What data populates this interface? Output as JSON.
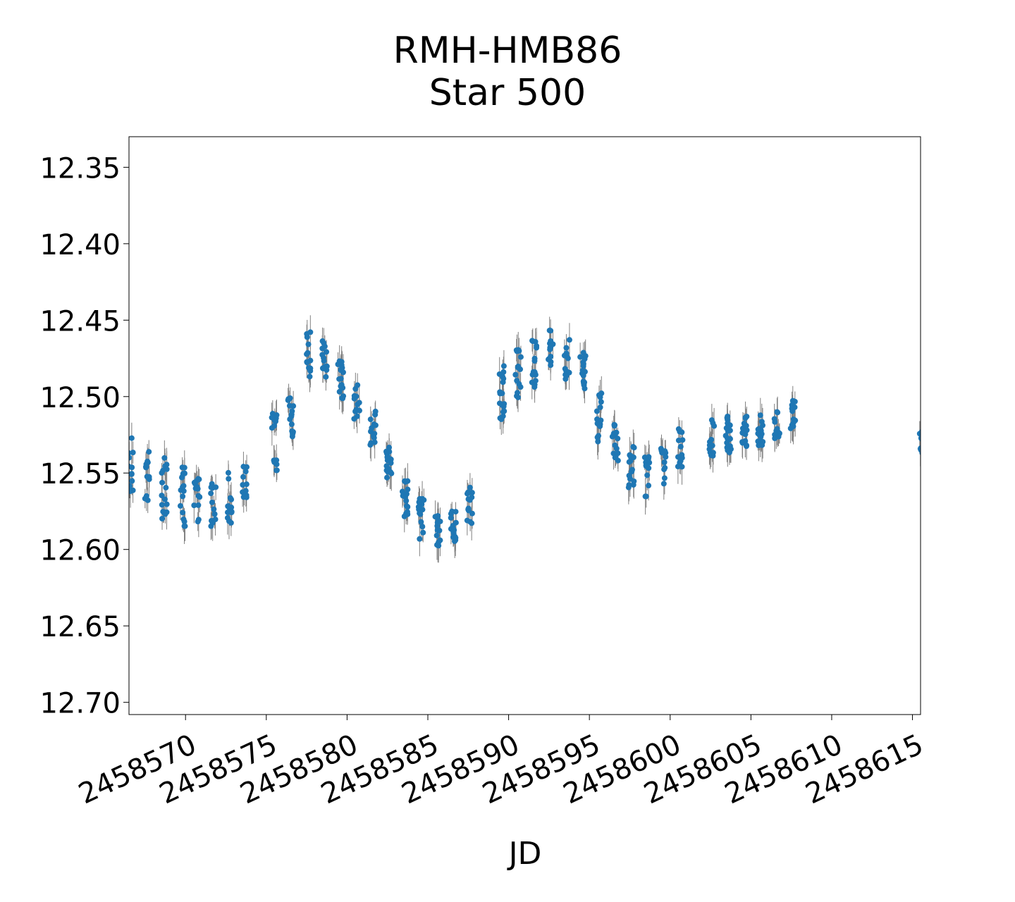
{
  "chart_data": {
    "type": "scatter",
    "title": "RMH-HMB86",
    "subtitle": "Star 500",
    "xlabel": "JD",
    "ylabel": "",
    "xlim": [
      2458566.5,
      2458615.5
    ],
    "ylim": [
      12.708,
      12.33
    ],
    "y_inverted": true,
    "x_ticks": [
      2458570,
      2458575,
      2458580,
      2458585,
      2458590,
      2458595,
      2458600,
      2458605,
      2458610,
      2458615
    ],
    "x_tick_labels": [
      "2458570",
      "2458575",
      "2458580",
      "2458585",
      "2458590",
      "2458595",
      "2458600",
      "2458605",
      "2458610",
      "2458615"
    ],
    "y_ticks": [
      12.35,
      12.4,
      12.45,
      12.5,
      12.55,
      12.6,
      12.65,
      12.7
    ],
    "y_tick_labels": [
      "12.35",
      "12.40",
      "12.45",
      "12.50",
      "12.55",
      "12.60",
      "12.65",
      "12.70"
    ],
    "grid": false,
    "marker_color": "#1f77b4",
    "errorbar_color": "#808080",
    "series": [
      {
        "points": [
          {
            "jd": 2458566.6,
            "center": 12.545,
            "spread": 0.02
          },
          {
            "jd": 2458567.6,
            "center": 12.552,
            "spread": 0.018
          },
          {
            "jd": 2458568.7,
            "center": 12.56,
            "spread": 0.02
          },
          {
            "jd": 2458569.8,
            "center": 12.565,
            "spread": 0.02
          },
          {
            "jd": 2458570.7,
            "center": 12.568,
            "spread": 0.015
          },
          {
            "jd": 2458571.7,
            "center": 12.572,
            "spread": 0.015
          },
          {
            "jd": 2458572.7,
            "center": 12.565,
            "spread": 0.018
          },
          {
            "jd": 2458573.7,
            "center": 12.555,
            "spread": 0.012
          },
          {
            "jd": 2458575.5,
            "center": 12.53,
            "spread": 0.02
          },
          {
            "jd": 2458576.5,
            "center": 12.515,
            "spread": 0.015
          },
          {
            "jd": 2458577.6,
            "center": 12.47,
            "spread": 0.018
          },
          {
            "jd": 2458578.6,
            "center": 12.478,
            "spread": 0.016
          },
          {
            "jd": 2458579.6,
            "center": 12.49,
            "spread": 0.014
          },
          {
            "jd": 2458580.6,
            "center": 12.505,
            "spread": 0.014
          },
          {
            "jd": 2458581.6,
            "center": 12.52,
            "spread": 0.012
          },
          {
            "jd": 2458582.6,
            "center": 12.545,
            "spread": 0.012
          },
          {
            "jd": 2458583.6,
            "center": 12.567,
            "spread": 0.012
          },
          {
            "jd": 2458584.6,
            "center": 12.58,
            "spread": 0.014
          },
          {
            "jd": 2458585.6,
            "center": 12.59,
            "spread": 0.012
          },
          {
            "jd": 2458586.6,
            "center": 12.585,
            "spread": 0.01
          },
          {
            "jd": 2458587.6,
            "center": 12.57,
            "spread": 0.014
          },
          {
            "jd": 2458589.6,
            "center": 12.5,
            "spread": 0.02
          },
          {
            "jd": 2458590.6,
            "center": 12.485,
            "spread": 0.016
          },
          {
            "jd": 2458591.6,
            "center": 12.478,
            "spread": 0.016
          },
          {
            "jd": 2458592.6,
            "center": 12.468,
            "spread": 0.012
          },
          {
            "jd": 2458593.6,
            "center": 12.475,
            "spread": 0.014
          },
          {
            "jd": 2458594.6,
            "center": 12.483,
            "spread": 0.012
          },
          {
            "jd": 2458595.6,
            "center": 12.515,
            "spread": 0.018
          },
          {
            "jd": 2458596.6,
            "center": 12.53,
            "spread": 0.012
          },
          {
            "jd": 2458597.6,
            "center": 12.545,
            "spread": 0.015
          },
          {
            "jd": 2458598.6,
            "center": 12.552,
            "spread": 0.014
          },
          {
            "jd": 2458599.6,
            "center": 12.545,
            "spread": 0.014
          },
          {
            "jd": 2458600.6,
            "center": 12.533,
            "spread": 0.014
          },
          {
            "jd": 2458602.6,
            "center": 12.527,
            "spread": 0.012
          },
          {
            "jd": 2458603.6,
            "center": 12.525,
            "spread": 0.012
          },
          {
            "jd": 2458604.6,
            "center": 12.522,
            "spread": 0.012
          },
          {
            "jd": 2458605.6,
            "center": 12.522,
            "spread": 0.01
          },
          {
            "jd": 2458606.6,
            "center": 12.518,
            "spread": 0.01
          },
          {
            "jd": 2458607.6,
            "center": 12.512,
            "spread": 0.01
          },
          {
            "jd": 2458615.6,
            "center": 12.528,
            "spread": 0.01
          }
        ]
      }
    ]
  }
}
